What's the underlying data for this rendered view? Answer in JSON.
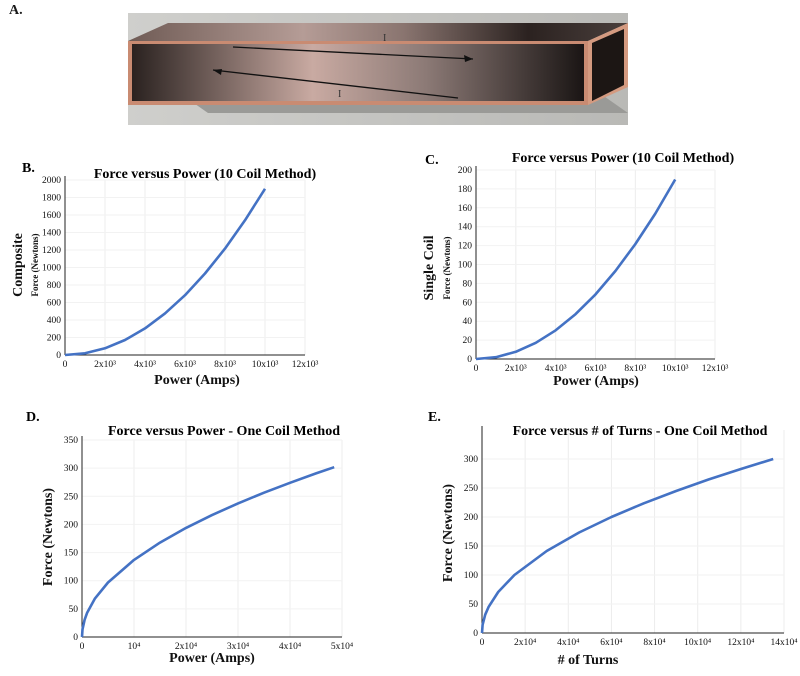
{
  "panel_a": {
    "letter": "A.",
    "current_labels": [
      "I",
      "I"
    ]
  },
  "chart_data": [
    {
      "letter": "B.",
      "type": "line",
      "title": "Force versus Power  (10 Coil Method)",
      "xlabel": "Power (Amps)",
      "ylabel": "Composite",
      "ylabel_sub": "Force (Newtons)",
      "xlim": [
        0,
        12000
      ],
      "ylim": [
        0,
        2000
      ],
      "xticks": [
        "0",
        "2x10³",
        "4x10³",
        "6x10³",
        "8x10³",
        "10x10³",
        "12x10³"
      ],
      "yticks": [
        "0",
        "200",
        "400",
        "600",
        "800",
        "1000",
        "1200",
        "1400",
        "1600",
        "1800",
        "2000"
      ],
      "color": "#4472c4",
      "series": [
        {
          "x": [
            0,
            1000,
            2000,
            3000,
            4000,
            5000,
            6000,
            7000,
            8000,
            9000,
            10000
          ],
          "y": [
            0,
            19,
            76,
            171,
            304,
            475,
            684,
            931,
            1216,
            1539,
            1900
          ]
        }
      ]
    },
    {
      "letter": "C.",
      "type": "line",
      "title": "Force versus Power  (10 Coil Method)",
      "xlabel": "Power (Amps)",
      "ylabel": "Single Coil",
      "ylabel_sub": "Force (Newtons)",
      "xlim": [
        0,
        12000
      ],
      "ylim": [
        0,
        200
      ],
      "xticks": [
        "0",
        "2x10³",
        "4x10³",
        "6x10³",
        "8x10³",
        "10x10³",
        "12x10³"
      ],
      "yticks": [
        "0",
        "20",
        "40",
        "60",
        "80",
        "100",
        "120",
        "140",
        "160",
        "180",
        "200"
      ],
      "color": "#4472c4",
      "series": [
        {
          "x": [
            0,
            1000,
            2000,
            3000,
            4000,
            5000,
            6000,
            7000,
            8000,
            9000,
            10000
          ],
          "y": [
            0,
            1.9,
            7.6,
            17.1,
            30.4,
            47.5,
            68.4,
            93.1,
            121.6,
            153.9,
            190
          ]
        }
      ]
    },
    {
      "letter": "D.",
      "type": "line",
      "title": "Force versus Power - One Coil Method",
      "xlabel": "Power (Amps)",
      "ylabel": "Force (Newtons)",
      "xlim": [
        0,
        50000
      ],
      "ylim": [
        0,
        350
      ],
      "xticks": [
        "0",
        "10⁴",
        "2x10⁴",
        "3x10⁴",
        "4x10⁴",
        "5x10⁴"
      ],
      "yticks": [
        "0",
        "50",
        "100",
        "150",
        "200",
        "250",
        "300",
        "350"
      ],
      "color": "#4472c4",
      "series": [
        {
          "x": [
            0,
            100,
            500,
            1000,
            2500,
            5000,
            10000,
            15000,
            20000,
            25000,
            30000,
            35000,
            40000,
            45000,
            48500
          ],
          "y": [
            0,
            13.7,
            30.6,
            43.3,
            68.5,
            96.9,
            137,
            167.8,
            193.8,
            216.6,
            237.3,
            256.3,
            274,
            290.6,
            301.7
          ]
        }
      ]
    },
    {
      "letter": "E.",
      "type": "line",
      "title": "Force versus # of Turns - One Coil Method",
      "xlabel": "# of Turns",
      "ylabel": "Force (Newtons)",
      "xlim": [
        0,
        140000
      ],
      "ylim": [
        0,
        350
      ],
      "xticks": [
        "0",
        "2x10⁴",
        "4x10⁴",
        "6x10⁴",
        "8x10⁴",
        "10x10⁴",
        "12x10⁴",
        "14x10⁴"
      ],
      "yticks": [
        "0",
        "50",
        "100",
        "150",
        "200",
        "250",
        "300"
      ],
      "color": "#4472c4",
      "series": [
        {
          "x": [
            0,
            300,
            1500,
            3000,
            7500,
            15000,
            30000,
            45000,
            60000,
            75000,
            90000,
            105000,
            120000,
            135000
          ],
          "y": [
            0,
            14.1,
            31.6,
            44.7,
            70.7,
            100,
            141.4,
            173.2,
            200,
            223.6,
            244.9,
            264.6,
            282.8,
            300
          ]
        }
      ]
    }
  ]
}
